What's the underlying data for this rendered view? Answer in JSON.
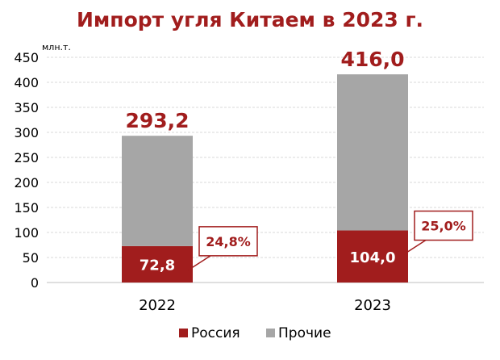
{
  "chart_data": {
    "type": "bar",
    "stacked": true,
    "title": "Импорт угля Китаем в 2023 г.",
    "ylabel": "млн.т.",
    "ylim": [
      0,
      450
    ],
    "yticks": [
      "0",
      "50",
      "100",
      "150",
      "200",
      "250",
      "300",
      "350",
      "400",
      "450"
    ],
    "categories": [
      "2022",
      "2023"
    ],
    "series": [
      {
        "name": "Россия",
        "values": [
          72.8,
          104.0
        ],
        "color": "#a11d1d",
        "labels": [
          "72,8",
          "104,0"
        ]
      },
      {
        "name": "Прочие",
        "values": [
          220.4,
          312.0
        ],
        "color": "#a6a6a6"
      }
    ],
    "totals": [
      293.2,
      416.0
    ],
    "total_labels": [
      "293,2",
      "416,0"
    ],
    "share_labels": [
      "24,8%",
      "25,0%"
    ],
    "grid": true,
    "legend_position": "bottom"
  }
}
